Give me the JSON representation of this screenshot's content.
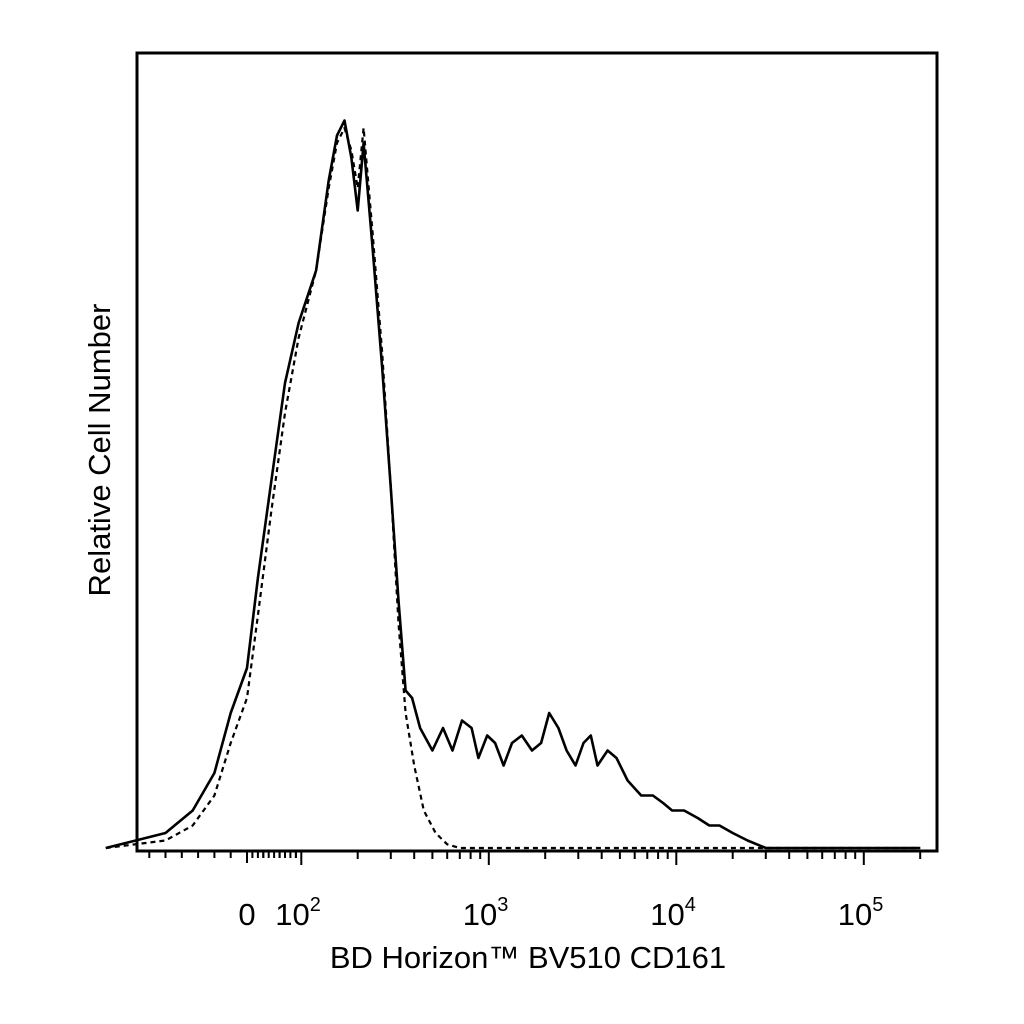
{
  "chart_data": {
    "type": "line",
    "title": "",
    "xlabel": "BD Horizon™ BV510 CD161",
    "ylabel": "Relative Cell Number",
    "x_scale": "biexponential",
    "xlim": [
      -300,
      200000
    ],
    "ylim": [
      0,
      100
    ],
    "grid": false,
    "legend": "none",
    "x_tick_labels": [
      {
        "value": 0,
        "label": "0"
      },
      {
        "value": 100,
        "base": "10",
        "exp": "2"
      },
      {
        "value": 1000,
        "base": "10",
        "exp": "3"
      },
      {
        "value": 10000,
        "base": "10",
        "exp": "4"
      },
      {
        "value": 100000,
        "base": "10",
        "exp": "5"
      }
    ],
    "series": [
      {
        "style": "solid",
        "color": "#000000",
        "points": [
          [
            -260,
            0
          ],
          [
            -150,
            2
          ],
          [
            -100,
            5
          ],
          [
            -60,
            10
          ],
          [
            -30,
            18
          ],
          [
            0,
            24
          ],
          [
            20,
            36
          ],
          [
            45,
            49
          ],
          [
            70,
            62
          ],
          [
            95,
            70
          ],
          [
            120,
            77
          ],
          [
            140,
            89
          ],
          [
            155,
            95
          ],
          [
            170,
            97
          ],
          [
            185,
            92
          ],
          [
            200,
            85
          ],
          [
            215,
            94
          ],
          [
            240,
            80
          ],
          [
            270,
            64
          ],
          [
            300,
            48
          ],
          [
            330,
            33
          ],
          [
            360,
            21
          ],
          [
            390,
            20
          ],
          [
            430,
            16
          ],
          [
            500,
            13
          ],
          [
            570,
            16
          ],
          [
            640,
            13
          ],
          [
            720,
            17
          ],
          [
            810,
            16
          ],
          [
            880,
            12
          ],
          [
            980,
            15
          ],
          [
            1080,
            14
          ],
          [
            1200,
            11
          ],
          [
            1330,
            14
          ],
          [
            1500,
            15
          ],
          [
            1700,
            13
          ],
          [
            1900,
            14
          ],
          [
            2100,
            18
          ],
          [
            2350,
            16
          ],
          [
            2600,
            13
          ],
          [
            2900,
            11
          ],
          [
            3200,
            14
          ],
          [
            3500,
            15
          ],
          [
            3800,
            11
          ],
          [
            4300,
            13
          ],
          [
            4800,
            12
          ],
          [
            5500,
            9
          ],
          [
            6500,
            7
          ],
          [
            7500,
            7
          ],
          [
            8500,
            6
          ],
          [
            9500,
            5
          ],
          [
            11000,
            5
          ],
          [
            13000,
            4
          ],
          [
            15000,
            3
          ],
          [
            17000,
            3
          ],
          [
            20000,
            2
          ],
          [
            24000,
            1
          ],
          [
            30000,
            0
          ],
          [
            200000,
            0
          ]
        ]
      },
      {
        "style": "dashed",
        "color": "#000000",
        "points": [
          [
            -260,
            0
          ],
          [
            -150,
            1
          ],
          [
            -100,
            3
          ],
          [
            -60,
            7
          ],
          [
            -30,
            14
          ],
          [
            0,
            20
          ],
          [
            20,
            31
          ],
          [
            45,
            45
          ],
          [
            70,
            58
          ],
          [
            95,
            68
          ],
          [
            120,
            77
          ],
          [
            140,
            88
          ],
          [
            155,
            94
          ],
          [
            170,
            96
          ],
          [
            185,
            93
          ],
          [
            200,
            88
          ],
          [
            215,
            96
          ],
          [
            240,
            82
          ],
          [
            270,
            66
          ],
          [
            300,
            48
          ],
          [
            330,
            30
          ],
          [
            360,
            18
          ],
          [
            400,
            11
          ],
          [
            450,
            5
          ],
          [
            520,
            2
          ],
          [
            600,
            0.5
          ],
          [
            700,
            0
          ],
          [
            200000,
            0
          ]
        ]
      }
    ]
  }
}
